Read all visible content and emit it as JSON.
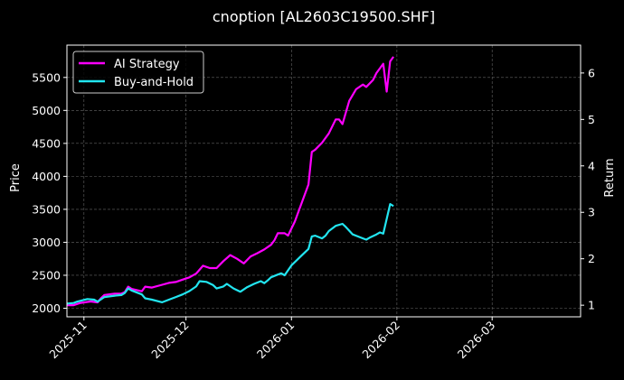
{
  "chart_data": {
    "type": "line",
    "title": "cnoption [AL2603C19500.SHF]",
    "ylabel": "Price",
    "y2label": "Return",
    "xlim": [
      "2025-10-27",
      "2026-03-27"
    ],
    "ylim": [
      1870,
      5990
    ],
    "y2lim": [
      0.75,
      6.6
    ],
    "x_ticks": [
      "2025-11",
      "2025-12",
      "2026-01",
      "2026-02",
      "2026-03"
    ],
    "y_ticks": [
      2000,
      2500,
      3000,
      3500,
      4000,
      4500,
      5000,
      5500
    ],
    "y2_ticks": [
      1,
      2,
      3,
      4,
      5,
      6
    ],
    "grid": true,
    "legend_position": "top-left",
    "series": [
      {
        "name": "AI Strategy",
        "axis": "right",
        "color": "#ff00ff",
        "points": [
          [
            "2025-10-27",
            1.0
          ],
          [
            "2025-10-29",
            1.0
          ],
          [
            "2025-10-31",
            1.05
          ],
          [
            "2025-11-03",
            1.08
          ],
          [
            "2025-11-05",
            1.06
          ],
          [
            "2025-11-06",
            1.15
          ],
          [
            "2025-11-07",
            1.22
          ],
          [
            "2025-11-10",
            1.25
          ],
          [
            "2025-11-12",
            1.25
          ],
          [
            "2025-11-13",
            1.28
          ],
          [
            "2025-11-14",
            1.4
          ],
          [
            "2025-11-15",
            1.35
          ],
          [
            "2025-11-18",
            1.3
          ],
          [
            "2025-11-19",
            1.4
          ],
          [
            "2025-11-21",
            1.38
          ],
          [
            "2025-11-24",
            1.44
          ],
          [
            "2025-11-26",
            1.48
          ],
          [
            "2025-11-28",
            1.5
          ],
          [
            "2025-11-30",
            1.55
          ],
          [
            "2025-12-02",
            1.6
          ],
          [
            "2025-12-04",
            1.68
          ],
          [
            "2025-12-06",
            1.85
          ],
          [
            "2025-12-08",
            1.8
          ],
          [
            "2025-12-10",
            1.8
          ],
          [
            "2025-12-12",
            1.95
          ],
          [
            "2025-12-14",
            2.08
          ],
          [
            "2025-12-16",
            2.0
          ],
          [
            "2025-12-18",
            1.9
          ],
          [
            "2025-12-20",
            2.05
          ],
          [
            "2025-12-22",
            2.12
          ],
          [
            "2025-12-24",
            2.2
          ],
          [
            "2025-12-26",
            2.3
          ],
          [
            "2025-12-27",
            2.4
          ],
          [
            "2025-12-28",
            2.55
          ],
          [
            "2025-12-30",
            2.55
          ],
          [
            "2025-12-31",
            2.5
          ],
          [
            "2026-01-02",
            2.8
          ],
          [
            "2026-01-06",
            3.6
          ],
          [
            "2026-01-07",
            4.3
          ],
          [
            "2026-01-08",
            4.35
          ],
          [
            "2026-01-10",
            4.5
          ],
          [
            "2026-01-12",
            4.7
          ],
          [
            "2026-01-14",
            5.0
          ],
          [
            "2026-01-15",
            5.0
          ],
          [
            "2026-01-16",
            4.9
          ],
          [
            "2026-01-18",
            5.4
          ],
          [
            "2026-01-20",
            5.65
          ],
          [
            "2026-01-22",
            5.75
          ],
          [
            "2026-01-23",
            5.7
          ],
          [
            "2026-01-25",
            5.85
          ],
          [
            "2026-01-26",
            6.0
          ],
          [
            "2026-01-28",
            6.2
          ],
          [
            "2026-01-29",
            5.6
          ],
          [
            "2026-01-30",
            6.25
          ],
          [
            "2026-01-31",
            6.35
          ]
        ]
      },
      {
        "name": "Buy-and-Hold",
        "axis": "left",
        "color": "#22e5f0",
        "points": [
          [
            "2025-10-27",
            2070
          ],
          [
            "2025-10-29",
            2080
          ],
          [
            "2025-10-30",
            2100
          ],
          [
            "2025-11-02",
            2140
          ],
          [
            "2025-11-04",
            2130
          ],
          [
            "2025-11-05",
            2100
          ],
          [
            "2025-11-07",
            2170
          ],
          [
            "2025-11-10",
            2190
          ],
          [
            "2025-11-12",
            2200
          ],
          [
            "2025-11-13",
            2230
          ],
          [
            "2025-11-14",
            2300
          ],
          [
            "2025-11-15",
            2270
          ],
          [
            "2025-11-18",
            2210
          ],
          [
            "2025-11-19",
            2150
          ],
          [
            "2025-11-21",
            2130
          ],
          [
            "2025-11-24",
            2090
          ],
          [
            "2025-11-26",
            2130
          ],
          [
            "2025-11-28",
            2170
          ],
          [
            "2025-11-30",
            2210
          ],
          [
            "2025-12-02",
            2260
          ],
          [
            "2025-12-04",
            2330
          ],
          [
            "2025-12-05",
            2410
          ],
          [
            "2025-12-07",
            2400
          ],
          [
            "2025-12-09",
            2350
          ],
          [
            "2025-12-10",
            2300
          ],
          [
            "2025-12-12",
            2330
          ],
          [
            "2025-12-13",
            2370
          ],
          [
            "2025-12-15",
            2300
          ],
          [
            "2025-12-17",
            2250
          ],
          [
            "2025-12-19",
            2320
          ],
          [
            "2025-12-21",
            2370
          ],
          [
            "2025-12-23",
            2410
          ],
          [
            "2025-12-24",
            2380
          ],
          [
            "2025-12-25",
            2420
          ],
          [
            "2025-12-26",
            2470
          ],
          [
            "2025-12-28",
            2510
          ],
          [
            "2025-12-29",
            2530
          ],
          [
            "2025-12-30",
            2500
          ],
          [
            "2026-01-01",
            2650
          ],
          [
            "2026-01-04",
            2800
          ],
          [
            "2026-01-06",
            2900
          ],
          [
            "2026-01-07",
            3090
          ],
          [
            "2026-01-08",
            3100
          ],
          [
            "2026-01-10",
            3060
          ],
          [
            "2026-01-11",
            3100
          ],
          [
            "2026-01-12",
            3170
          ],
          [
            "2026-01-14",
            3250
          ],
          [
            "2026-01-16",
            3280
          ],
          [
            "2026-01-17",
            3230
          ],
          [
            "2026-01-19",
            3120
          ],
          [
            "2026-01-21",
            3080
          ],
          [
            "2026-01-22",
            3060
          ],
          [
            "2026-01-23",
            3040
          ],
          [
            "2026-01-24",
            3070
          ],
          [
            "2026-01-26",
            3120
          ],
          [
            "2026-01-27",
            3150
          ],
          [
            "2026-01-28",
            3130
          ],
          [
            "2026-01-30",
            3580
          ],
          [
            "2026-01-31",
            3550
          ]
        ]
      }
    ]
  }
}
